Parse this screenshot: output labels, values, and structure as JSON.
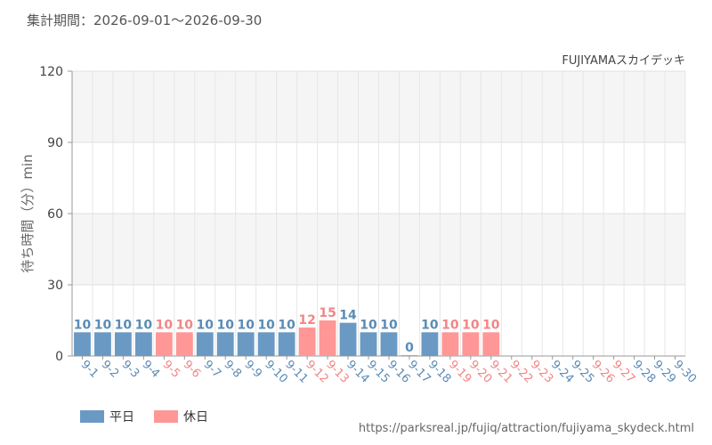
{
  "period_text": "集計期間：2026-09-01～2026-09-30",
  "source_url": "https://parksreal.jp/fujiq/attraction/fujiyama_skydeck.html",
  "legend": {
    "weekday": "平日",
    "holiday": "休日"
  },
  "colors": {
    "weekday": "#6a9ac4",
    "holiday": "#ff9797",
    "weekday_text": "#5b8bb5",
    "holiday_text": "#f28585"
  },
  "chart_data": {
    "type": "bar",
    "title": "FUJIYAMAスカイデッキ",
    "ylabel": "待ち時間（分）min",
    "ylim": [
      0,
      120
    ],
    "yticks": [
      0,
      30,
      60,
      90,
      120
    ],
    "categories": [
      "9-1",
      "9-2",
      "9-3",
      "9-4",
      "9-5",
      "9-6",
      "9-7",
      "9-8",
      "9-9",
      "9-10",
      "9-11",
      "9-12",
      "9-13",
      "9-14",
      "9-15",
      "9-16",
      "9-17",
      "9-18",
      "9-19",
      "9-20",
      "9-21",
      "9-22",
      "9-23",
      "9-24",
      "9-25",
      "9-26",
      "9-27",
      "9-28",
      "9-29",
      "9-30"
    ],
    "values": [
      10,
      10,
      10,
      10,
      10,
      10,
      10,
      10,
      10,
      10,
      10,
      12,
      15,
      14,
      10,
      10,
      0,
      10,
      10,
      10,
      10,
      null,
      null,
      null,
      null,
      null,
      null,
      null,
      null,
      null
    ],
    "day_types": [
      "weekday",
      "weekday",
      "weekday",
      "weekday",
      "holiday",
      "holiday",
      "weekday",
      "weekday",
      "weekday",
      "weekday",
      "weekday",
      "holiday",
      "holiday",
      "weekday",
      "weekday",
      "weekday",
      "weekday",
      "weekday",
      "holiday",
      "holiday",
      "holiday",
      "holiday",
      "holiday",
      "weekday",
      "weekday",
      "holiday",
      "holiday",
      "weekday",
      "weekday",
      "weekday"
    ],
    "grid": true
  }
}
